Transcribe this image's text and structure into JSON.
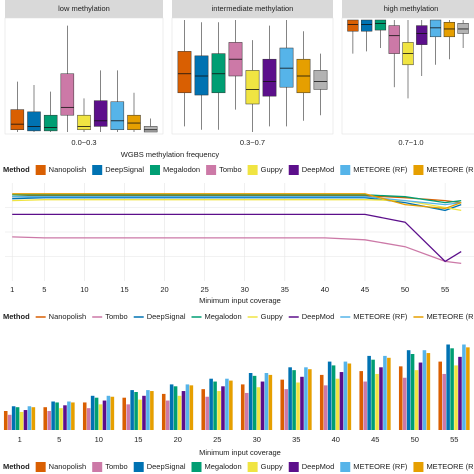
{
  "chart_data": [
    {
      "type": "boxplot",
      "facets": [
        "low methylation",
        "intermediate methylation",
        "high methylation"
      ],
      "categories": [
        "0.0~0.3",
        "0.3~0.7",
        "0.7~1.0"
      ],
      "xlabel": "WGBS methylation frequency",
      "legend_title": "Method",
      "ylim": [
        0,
        1
      ],
      "series": [
        {
          "name": "Nanopolish",
          "color": "#d95f02",
          "values": [
            {
              "min": 0,
              "q1": 0.02,
              "median": 0.07,
              "q3": 0.2,
              "max": 0.45
            },
            {
              "min": 0.05,
              "q1": 0.35,
              "median": 0.52,
              "q3": 0.72,
              "max": 1
            },
            {
              "min": 0.7,
              "q1": 0.9,
              "median": 0.96,
              "q3": 1,
              "max": 1
            }
          ]
        },
        {
          "name": "DeepSignal",
          "color": "#0072b2",
          "values": [
            {
              "min": 0,
              "q1": 0.01,
              "median": 0.05,
              "q3": 0.18,
              "max": 0.42
            },
            {
              "min": 0.02,
              "q1": 0.33,
              "median": 0.5,
              "q3": 0.68,
              "max": 0.98
            },
            {
              "min": 0.72,
              "q1": 0.9,
              "median": 0.96,
              "q3": 1,
              "max": 1
            }
          ]
        },
        {
          "name": "Megalodon",
          "color": "#009e73",
          "values": [
            {
              "min": 0,
              "q1": 0.01,
              "median": 0.04,
              "q3": 0.15,
              "max": 0.36
            },
            {
              "min": 0.02,
              "q1": 0.35,
              "median": 0.52,
              "q3": 0.7,
              "max": 0.98
            },
            {
              "min": 0.75,
              "q1": 0.91,
              "median": 0.97,
              "q3": 1,
              "max": 1
            }
          ]
        },
        {
          "name": "Tombo",
          "color": "#cc79a7",
          "values": [
            {
              "min": 0,
              "q1": 0.15,
              "median": 0.22,
              "q3": 0.52,
              "max": 0.95
            },
            {
              "min": 0.2,
              "q1": 0.5,
              "median": 0.65,
              "q3": 0.8,
              "max": 1
            },
            {
              "min": 0.4,
              "q1": 0.7,
              "median": 0.86,
              "q3": 0.95,
              "max": 1
            }
          ]
        },
        {
          "name": "Guppy",
          "color": "#f0e442",
          "values": [
            {
              "min": 0,
              "q1": 0.02,
              "median": 0.05,
              "q3": 0.15,
              "max": 0.3
            },
            {
              "min": 0,
              "q1": 0.25,
              "median": 0.38,
              "q3": 0.55,
              "max": 0.82
            },
            {
              "min": 0.3,
              "q1": 0.6,
              "median": 0.7,
              "q3": 0.8,
              "max": 1
            }
          ]
        },
        {
          "name": "DeepMod",
          "color": "#5c0f8b",
          "values": [
            {
              "min": 0,
              "q1": 0.05,
              "median": 0.1,
              "q3": 0.28,
              "max": 0.55
            },
            {
              "min": 0.05,
              "q1": 0.32,
              "median": 0.45,
              "q3": 0.65,
              "max": 0.95
            },
            {
              "min": 0.5,
              "q1": 0.78,
              "median": 0.88,
              "q3": 0.95,
              "max": 1
            }
          ]
        },
        {
          "name": "METEORE (RF)",
          "color": "#56b4e9",
          "values": [
            {
              "min": 0,
              "q1": 0.02,
              "median": 0.1,
              "q3": 0.27,
              "max": 0.55
            },
            {
              "min": 0.05,
              "q1": 0.4,
              "median": 0.57,
              "q3": 0.75,
              "max": 1
            },
            {
              "min": 0.6,
              "q1": 0.85,
              "median": 0.93,
              "q3": 1,
              "max": 1
            }
          ]
        },
        {
          "name": "METEORE (REG)",
          "color": "#e69f00",
          "values": [
            {
              "min": 0,
              "q1": 0.02,
              "median": 0.08,
              "q3": 0.15,
              "max": 0.35
            },
            {
              "min": 0.1,
              "q1": 0.35,
              "median": 0.5,
              "q3": 0.65,
              "max": 0.9
            },
            {
              "min": 0.65,
              "q1": 0.85,
              "median": 0.92,
              "q3": 0.98,
              "max": 1
            }
          ]
        },
        {
          "color": "#b3b3b3",
          "values": [
            {
              "min": 0,
              "q1": 0,
              "median": 0.02,
              "q3": 0.05,
              "max": 0.12
            },
            {
              "min": 0.15,
              "q1": 0.38,
              "median": 0.45,
              "q3": 0.55,
              "max": 0.7
            },
            {
              "min": 0.75,
              "q1": 0.88,
              "median": 0.92,
              "q3": 0.97,
              "max": 1
            }
          ]
        }
      ]
    },
    {
      "type": "line",
      "xlabel": "Minimum input coverage",
      "legend_title": "Method",
      "x": [
        1,
        5,
        10,
        15,
        20,
        25,
        30,
        35,
        40,
        45,
        50,
        55,
        57
      ],
      "xlim": [
        0.1,
        58.6
      ],
      "xticks": [
        1,
        5,
        10,
        15,
        20,
        25,
        30,
        35,
        40,
        45,
        50,
        55
      ],
      "ylim": [
        0,
        1
      ],
      "grid": true,
      "series": [
        {
          "name": "Nanopolish",
          "color": "#d95f02",
          "values": [
            0.86,
            0.87,
            0.87,
            0.87,
            0.87,
            0.87,
            0.87,
            0.87,
            0.87,
            0.87,
            0.85,
            0.82,
            0.8
          ]
        },
        {
          "name": "Tombo",
          "color": "#cc79a7",
          "values": [
            0.45,
            0.44,
            0.44,
            0.44,
            0.44,
            0.44,
            0.44,
            0.44,
            0.44,
            0.42,
            0.35,
            0.2,
            0.18
          ]
        },
        {
          "name": "DeepSignal",
          "color": "#0072b2",
          "values": [
            0.84,
            0.85,
            0.85,
            0.85,
            0.85,
            0.85,
            0.85,
            0.85,
            0.85,
            0.85,
            0.8,
            0.72,
            0.78
          ]
        },
        {
          "name": "Megalodon",
          "color": "#009e73",
          "values": [
            0.88,
            0.88,
            0.88,
            0.88,
            0.88,
            0.88,
            0.88,
            0.88,
            0.88,
            0.88,
            0.86,
            0.8,
            0.82
          ]
        },
        {
          "name": "Guppy",
          "color": "#f0e442",
          "values": [
            0.82,
            0.83,
            0.83,
            0.83,
            0.83,
            0.83,
            0.83,
            0.83,
            0.83,
            0.83,
            0.82,
            0.75,
            0.72
          ]
        },
        {
          "name": "DeepMod",
          "color": "#5c0f8b",
          "values": [
            0.68,
            0.68,
            0.68,
            0.68,
            0.68,
            0.68,
            0.68,
            0.68,
            0.68,
            0.68,
            0.6,
            0.2,
            0.3
          ]
        },
        {
          "name": "METEORE (RF)",
          "color": "#56b4e9",
          "values": [
            0.86,
            0.86,
            0.86,
            0.86,
            0.86,
            0.86,
            0.86,
            0.86,
            0.86,
            0.86,
            0.82,
            0.78,
            0.8
          ]
        },
        {
          "name": "METEORE (REG)",
          "color": "#e69f00",
          "values": [
            0.89,
            0.89,
            0.89,
            0.89,
            0.89,
            0.89,
            0.89,
            0.89,
            0.89,
            0.89,
            0.78,
            0.74,
            0.8
          ]
        }
      ]
    },
    {
      "type": "bar",
      "xlabel": "Minimum input coverage",
      "legend_title": "Method",
      "categories": [
        1,
        5,
        10,
        15,
        20,
        25,
        30,
        35,
        40,
        45,
        50,
        55
      ],
      "ylim": [
        0,
        1
      ],
      "series": [
        {
          "name": "Nanopolish",
          "color": "#d95f02",
          "values": [
            0.2,
            0.24,
            0.29,
            0.34,
            0.38,
            0.43,
            0.48,
            0.53,
            0.58,
            0.62,
            0.67,
            0.72
          ]
        },
        {
          "name": "Tombo",
          "color": "#cc79a7",
          "values": [
            0.16,
            0.2,
            0.23,
            0.27,
            0.31,
            0.35,
            0.39,
            0.43,
            0.47,
            0.51,
            0.55,
            0.59
          ]
        },
        {
          "name": "DeepSignal",
          "color": "#0072b2",
          "values": [
            0.25,
            0.3,
            0.36,
            0.42,
            0.48,
            0.54,
            0.6,
            0.66,
            0.72,
            0.78,
            0.84,
            0.9
          ]
        },
        {
          "name": "Megalodon",
          "color": "#009e73",
          "values": [
            0.24,
            0.29,
            0.34,
            0.4,
            0.46,
            0.51,
            0.57,
            0.63,
            0.68,
            0.74,
            0.8,
            0.86
          ]
        },
        {
          "name": "Guppy",
          "color": "#f0e442",
          "values": [
            0.19,
            0.23,
            0.27,
            0.32,
            0.36,
            0.41,
            0.45,
            0.5,
            0.54,
            0.59,
            0.63,
            0.68
          ]
        },
        {
          "name": "DeepMod",
          "color": "#5c0f8b",
          "values": [
            0.21,
            0.26,
            0.31,
            0.36,
            0.41,
            0.46,
            0.51,
            0.56,
            0.61,
            0.66,
            0.71,
            0.77
          ]
        },
        {
          "name": "METEORE (RF)",
          "color": "#56b4e9",
          "values": [
            0.25,
            0.3,
            0.36,
            0.42,
            0.48,
            0.54,
            0.6,
            0.66,
            0.72,
            0.78,
            0.84,
            0.9
          ]
        },
        {
          "name": "METEORE (REG)",
          "color": "#e69f00",
          "values": [
            0.24,
            0.29,
            0.35,
            0.41,
            0.47,
            0.52,
            0.58,
            0.64,
            0.7,
            0.76,
            0.81,
            0.87
          ]
        }
      ]
    }
  ]
}
